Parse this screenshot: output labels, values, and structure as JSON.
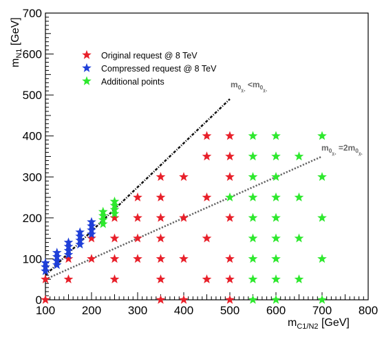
{
  "chart_data": {
    "type": "scatter",
    "xlabel_main": "m",
    "xlabel_sub": "C1/N2",
    "xlabel_unit": " [GeV]",
    "ylabel_main": "m",
    "ylabel_sub": "N1",
    "ylabel_unit": " [GeV]",
    "xlim": [
      100,
      800
    ],
    "ylim": [
      0,
      700
    ],
    "xticks": [
      100,
      200,
      300,
      400,
      500,
      600,
      700,
      800
    ],
    "yticks": [
      0,
      100,
      200,
      300,
      400,
      500,
      600,
      700
    ],
    "grid": false,
    "legend_position": "top-left",
    "series": [
      {
        "name": "Original request @ 8 TeV",
        "color": "#e8202a",
        "marker": "star",
        "points": [
          [
            100,
            0
          ],
          [
            100,
            50
          ],
          [
            150,
            50
          ],
          [
            150,
            100
          ],
          [
            200,
            100
          ],
          [
            200,
            150
          ],
          [
            250,
            50
          ],
          [
            250,
            100
          ],
          [
            250,
            150
          ],
          [
            250,
            200
          ],
          [
            300,
            100
          ],
          [
            300,
            150
          ],
          [
            300,
            200
          ],
          [
            300,
            250
          ],
          [
            350,
            0
          ],
          [
            350,
            50
          ],
          [
            350,
            100
          ],
          [
            350,
            150
          ],
          [
            350,
            200
          ],
          [
            350,
            250
          ],
          [
            350,
            300
          ],
          [
            400,
            0
          ],
          [
            400,
            100
          ],
          [
            400,
            200
          ],
          [
            400,
            300
          ],
          [
            450,
            50
          ],
          [
            450,
            150
          ],
          [
            450,
            250
          ],
          [
            450,
            350
          ],
          [
            450,
            400
          ],
          [
            500,
            0
          ],
          [
            500,
            50
          ],
          [
            500,
            100
          ],
          [
            500,
            200
          ],
          [
            500,
            300
          ],
          [
            500,
            350
          ],
          [
            500,
            400
          ]
        ]
      },
      {
        "name": "Compressed request @ 8 TeV",
        "color": "#1f3fd8",
        "marker": "star",
        "points": [
          [
            100,
            70
          ],
          [
            100,
            80
          ],
          [
            100,
            90
          ],
          [
            125,
            85
          ],
          [
            125,
            95
          ],
          [
            125,
            105
          ],
          [
            125,
            115
          ],
          [
            150,
            110
          ],
          [
            150,
            120
          ],
          [
            150,
            130
          ],
          [
            150,
            140
          ],
          [
            175,
            135
          ],
          [
            175,
            145
          ],
          [
            175,
            155
          ],
          [
            175,
            165
          ],
          [
            200,
            160
          ],
          [
            200,
            170
          ],
          [
            200,
            180
          ],
          [
            200,
            190
          ]
        ]
      },
      {
        "name": "Additional points",
        "color": "#2ee82e",
        "marker": "star",
        "points": [
          [
            225,
            185
          ],
          [
            225,
            195
          ],
          [
            225,
            205
          ],
          [
            225,
            215
          ],
          [
            250,
            210
          ],
          [
            250,
            220
          ],
          [
            250,
            230
          ],
          [
            250,
            240
          ],
          [
            500,
            250
          ],
          [
            550,
            0
          ],
          [
            550,
            50
          ],
          [
            550,
            100
          ],
          [
            550,
            150
          ],
          [
            550,
            200
          ],
          [
            550,
            250
          ],
          [
            550,
            300
          ],
          [
            550,
            350
          ],
          [
            550,
            400
          ],
          [
            600,
            0
          ],
          [
            600,
            50
          ],
          [
            600,
            100
          ],
          [
            600,
            150
          ],
          [
            600,
            200
          ],
          [
            600,
            250
          ],
          [
            600,
            300
          ],
          [
            600,
            350
          ],
          [
            600,
            400
          ],
          [
            650,
            50
          ],
          [
            650,
            150
          ],
          [
            650,
            250
          ],
          [
            650,
            350
          ],
          [
            700,
            0
          ],
          [
            700,
            100
          ],
          [
            700,
            200
          ],
          [
            700,
            300
          ],
          [
            700,
            400
          ]
        ]
      }
    ],
    "guide_lines": [
      {
        "id": "diag",
        "label_main": "m",
        "label_sub1": "0",
        "label_subsub1": "χ₂",
        "label_op": " <m",
        "label_sub2": "0",
        "label_subsub2": "χ₁",
        "style": "dash-dot",
        "from": [
          100,
          60
        ],
        "to": [
          500,
          490
        ]
      },
      {
        "id": "half",
        "label_main": "m",
        "label_sub1": "0",
        "label_subsub1": "χ₂",
        "label_op": " =2m",
        "label_sub2": "0",
        "label_subsub2": "χ₁",
        "style": "dotted",
        "from": [
          100,
          50
        ],
        "to": [
          700,
          350
        ]
      }
    ]
  }
}
